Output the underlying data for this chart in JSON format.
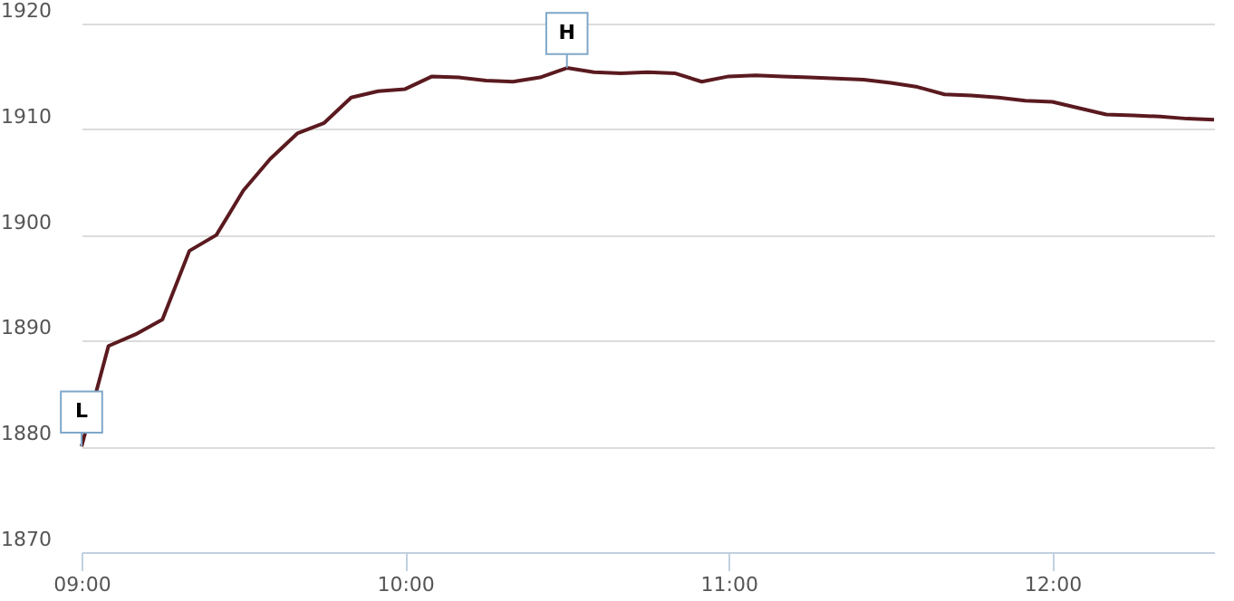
{
  "chart_data": {
    "type": "line",
    "x": [
      9,
      9.0833,
      9.1667,
      9.25,
      9.3333,
      9.4167,
      9.5,
      9.5833,
      9.6667,
      9.75,
      9.8333,
      9.9167,
      10,
      10.0833,
      10.1667,
      10.25,
      10.3333,
      10.4167,
      10.5,
      10.5833,
      10.6667,
      10.75,
      10.8333,
      10.9167,
      11,
      11.0833,
      11.1667,
      11.25,
      11.3333,
      11.4167,
      11.5,
      11.5833,
      11.6667,
      11.75,
      11.8333,
      11.9167,
      12,
      12.0833,
      12.1667,
      12.25,
      12.3333,
      12.4167,
      12.5
    ],
    "series": [
      {
        "color": "#5a1a1f",
        "values": [
          1880,
          1889.5,
          1890.6,
          1892,
          1898.5,
          1900,
          1904.2,
          1907.2,
          1909.6,
          1910.6,
          1913,
          1913.6,
          1913.8,
          1915,
          1914.9,
          1914.6,
          1914.5,
          1914.9,
          1915.8,
          1915.4,
          1915.3,
          1915.4,
          1915.3,
          1914.5,
          1915,
          1915.1,
          1915,
          1914.9,
          1914.8,
          1914.7,
          1914.4,
          1914,
          1913.3,
          1913.2,
          1913,
          1912.7,
          1912.6,
          1912,
          1911.4,
          1911.3,
          1911.2,
          1911,
          1910.9
        ]
      }
    ],
    "xlim": [
      9,
      12.5
    ],
    "xticks": [
      {
        "value": 9,
        "label": "09:00"
      },
      {
        "value": 10,
        "label": "10:00"
      },
      {
        "value": 11,
        "label": "11:00"
      },
      {
        "value": 12,
        "label": "12:00"
      }
    ],
    "ylim": [
      1870,
      1920
    ],
    "yticks": [
      1870,
      1880,
      1890,
      1900,
      1910,
      1920
    ],
    "grid": "y",
    "marker": "none",
    "annotations": [
      {
        "text": "L",
        "x": 9,
        "y": 1880
      },
      {
        "text": "H",
        "x": 10.5,
        "y": 1915.8
      }
    ]
  }
}
